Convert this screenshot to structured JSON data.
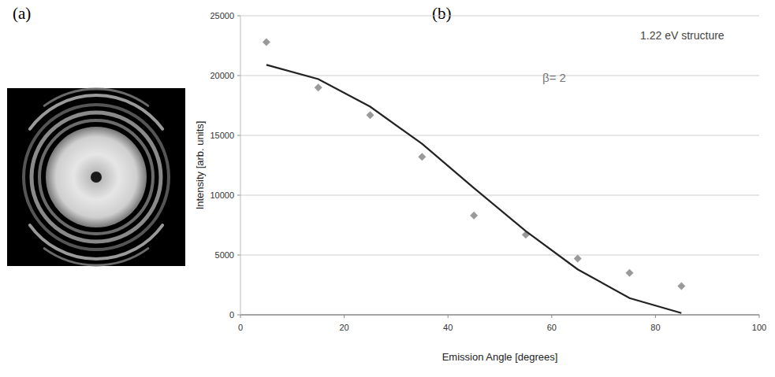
{
  "panel_labels": [
    "(a)",
    "(b)"
  ],
  "chart_data": {
    "type": "scatter",
    "annotations": [
      "1.22 eV structure",
      "β= 2"
    ],
    "x_label": "Emission Angle [degrees]",
    "y_label": "Intensity [arb. units]",
    "x": [
      5,
      15,
      25,
      35,
      45,
      55,
      65,
      75,
      85
    ],
    "series": [
      {
        "type": "scatter",
        "marker": "diamond",
        "color": "#9a9a9a",
        "values": [
          22800,
          19000,
          16700,
          13200,
          8300,
          6700,
          4700,
          3500,
          2400
        ]
      },
      {
        "type": "line",
        "line_style": "solid",
        "color": "#222222",
        "values": [
          20900,
          19700,
          17400,
          14300,
          10600,
          7000,
          3800,
          1400,
          150
        ]
      }
    ],
    "xlim": [
      0,
      100
    ],
    "xticks": [
      0,
      20,
      40,
      60,
      80,
      100
    ],
    "ylim": [
      0,
      25000
    ],
    "yticks": [
      0,
      5000,
      10000,
      15000,
      20000,
      25000
    ],
    "grid": true
  }
}
